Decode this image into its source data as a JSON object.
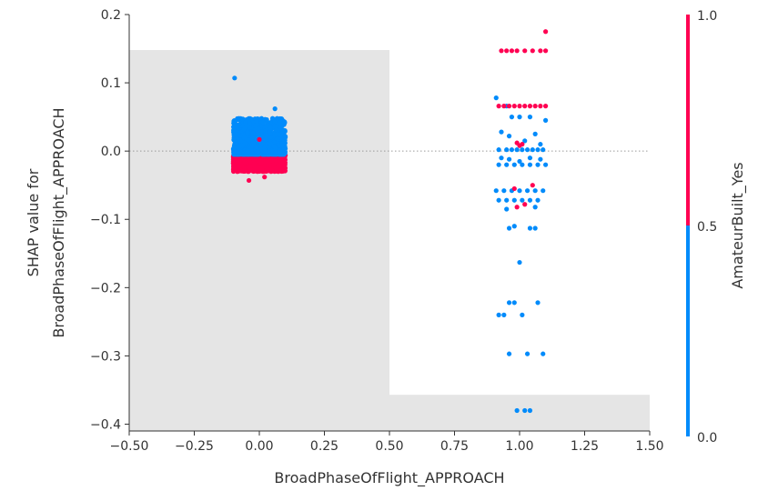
{
  "colors": {
    "red": "#ff0052",
    "blue": "#008bfb",
    "shade": "#e5e5e5",
    "axis": "#333333",
    "zero_line": "#9a9a9a"
  },
  "chart_data": {
    "type": "scatter",
    "title": "",
    "xlabel": "BroadPhaseOfFlight_APPROACH",
    "ylabel_lines": [
      "SHAP value for",
      "BroadPhaseOfFlight_APPROACH"
    ],
    "xlim": [
      -0.5,
      1.5
    ],
    "ylim": [
      -0.41,
      0.2
    ],
    "xticks": [
      -0.5,
      -0.25,
      0.0,
      0.25,
      0.5,
      0.75,
      1.0,
      1.25,
      1.5
    ],
    "xtick_labels": [
      "−0.50",
      "−0.25",
      "0.00",
      "0.25",
      "0.50",
      "0.75",
      "1.00",
      "1.25",
      "1.50"
    ],
    "yticks": [
      -0.4,
      -0.3,
      -0.2,
      -0.1,
      0.0,
      0.1,
      0.2
    ],
    "ytick_labels": [
      "−0.4",
      "−0.3",
      "−0.2",
      "−0.1",
      "0.0",
      "0.1",
      "0.2"
    ],
    "zero_line": true,
    "shaded_regions": [
      {
        "x": [
          -0.5,
          0.5
        ],
        "y": [
          -0.41,
          0.148
        ]
      },
      {
        "x": [
          0.5,
          1.5
        ],
        "y": [
          -0.41,
          -0.357
        ]
      }
    ],
    "colorbar": {
      "label": "AmateurBuilt_Yes",
      "min": 0.0,
      "max": 1.0,
      "split": 0.5,
      "tick_labels": [
        "1.0",
        "0.5",
        "0.0"
      ]
    },
    "series": [
      {
        "name": "0",
        "group": "x=0 dense",
        "x_center": 0.0,
        "x_spread": 0.1,
        "points": [
          [
            -0.095,
            0.107
          ],
          [
            0.06,
            0.062
          ],
          [
            0.0,
            0.017
          ],
          [
            -0.04,
            -0.043
          ],
          [
            0.02,
            -0.038
          ]
        ],
        "dense_band": {
          "blue_y": [
            -0.005,
            0.048
          ],
          "red_y": [
            -0.03,
            -0.006
          ]
        }
      },
      {
        "name": "1",
        "group": "x=1 blue",
        "points": [
          [
            0.91,
            0.078
          ],
          [
            0.95,
            0.066
          ],
          [
            0.97,
            0.05
          ],
          [
            1.0,
            0.05
          ],
          [
            1.04,
            0.05
          ],
          [
            1.1,
            0.045
          ],
          [
            0.93,
            0.028
          ],
          [
            0.96,
            0.022
          ],
          [
            1.02,
            0.015
          ],
          [
            1.06,
            0.025
          ],
          [
            1.08,
            0.01
          ],
          [
            0.92,
            0.002
          ],
          [
            0.95,
            0.002
          ],
          [
            0.97,
            0.002
          ],
          [
            0.99,
            0.002
          ],
          [
            1.01,
            0.002
          ],
          [
            1.03,
            0.002
          ],
          [
            1.05,
            0.002
          ],
          [
            1.07,
            0.002
          ],
          [
            1.09,
            0.002
          ],
          [
            0.93,
            -0.01
          ],
          [
            0.96,
            -0.012
          ],
          [
            1.0,
            -0.015
          ],
          [
            1.04,
            -0.01
          ],
          [
            1.08,
            -0.012
          ],
          [
            0.92,
            -0.02
          ],
          [
            0.95,
            -0.02
          ],
          [
            0.98,
            -0.02
          ],
          [
            1.01,
            -0.02
          ],
          [
            1.04,
            -0.02
          ],
          [
            1.07,
            -0.02
          ],
          [
            1.1,
            -0.02
          ],
          [
            0.91,
            -0.058
          ],
          [
            0.94,
            -0.058
          ],
          [
            0.97,
            -0.058
          ],
          [
            1.0,
            -0.058
          ],
          [
            1.03,
            -0.058
          ],
          [
            1.06,
            -0.058
          ],
          [
            1.09,
            -0.058
          ],
          [
            0.92,
            -0.072
          ],
          [
            0.95,
            -0.072
          ],
          [
            0.98,
            -0.072
          ],
          [
            1.01,
            -0.072
          ],
          [
            1.04,
            -0.072
          ],
          [
            1.07,
            -0.072
          ],
          [
            0.95,
            -0.085
          ],
          [
            1.06,
            -0.082
          ],
          [
            0.96,
            -0.113
          ],
          [
            0.98,
            -0.11
          ],
          [
            1.04,
            -0.113
          ],
          [
            1.06,
            -0.113
          ],
          [
            1.0,
            -0.163
          ],
          [
            0.96,
            -0.222
          ],
          [
            0.98,
            -0.222
          ],
          [
            1.07,
            -0.222
          ],
          [
            0.92,
            -0.24
          ],
          [
            0.94,
            -0.24
          ],
          [
            1.01,
            -0.24
          ],
          [
            0.96,
            -0.297
          ],
          [
            1.03,
            -0.297
          ],
          [
            1.09,
            -0.297
          ],
          [
            0.99,
            -0.38
          ],
          [
            1.02,
            -0.38
          ],
          [
            1.04,
            -0.38
          ]
        ]
      },
      {
        "name": "1",
        "group": "x=1 red",
        "points": [
          [
            1.1,
            0.175
          ],
          [
            0.93,
            0.147
          ],
          [
            0.95,
            0.147
          ],
          [
            0.97,
            0.147
          ],
          [
            0.99,
            0.147
          ],
          [
            1.02,
            0.147
          ],
          [
            1.05,
            0.147
          ],
          [
            1.08,
            0.147
          ],
          [
            1.1,
            0.147
          ],
          [
            0.92,
            0.066
          ],
          [
            0.94,
            0.066
          ],
          [
            0.96,
            0.066
          ],
          [
            0.98,
            0.066
          ],
          [
            1.0,
            0.066
          ],
          [
            1.02,
            0.066
          ],
          [
            1.04,
            0.066
          ],
          [
            1.06,
            0.066
          ],
          [
            1.08,
            0.066
          ],
          [
            1.1,
            0.066
          ],
          [
            0.99,
            0.012
          ],
          [
            1.01,
            0.01
          ],
          [
            1.0,
            0.008
          ],
          [
            0.98,
            -0.055
          ],
          [
            1.05,
            -0.05
          ],
          [
            0.99,
            -0.082
          ],
          [
            1.02,
            -0.078
          ]
        ]
      }
    ]
  }
}
